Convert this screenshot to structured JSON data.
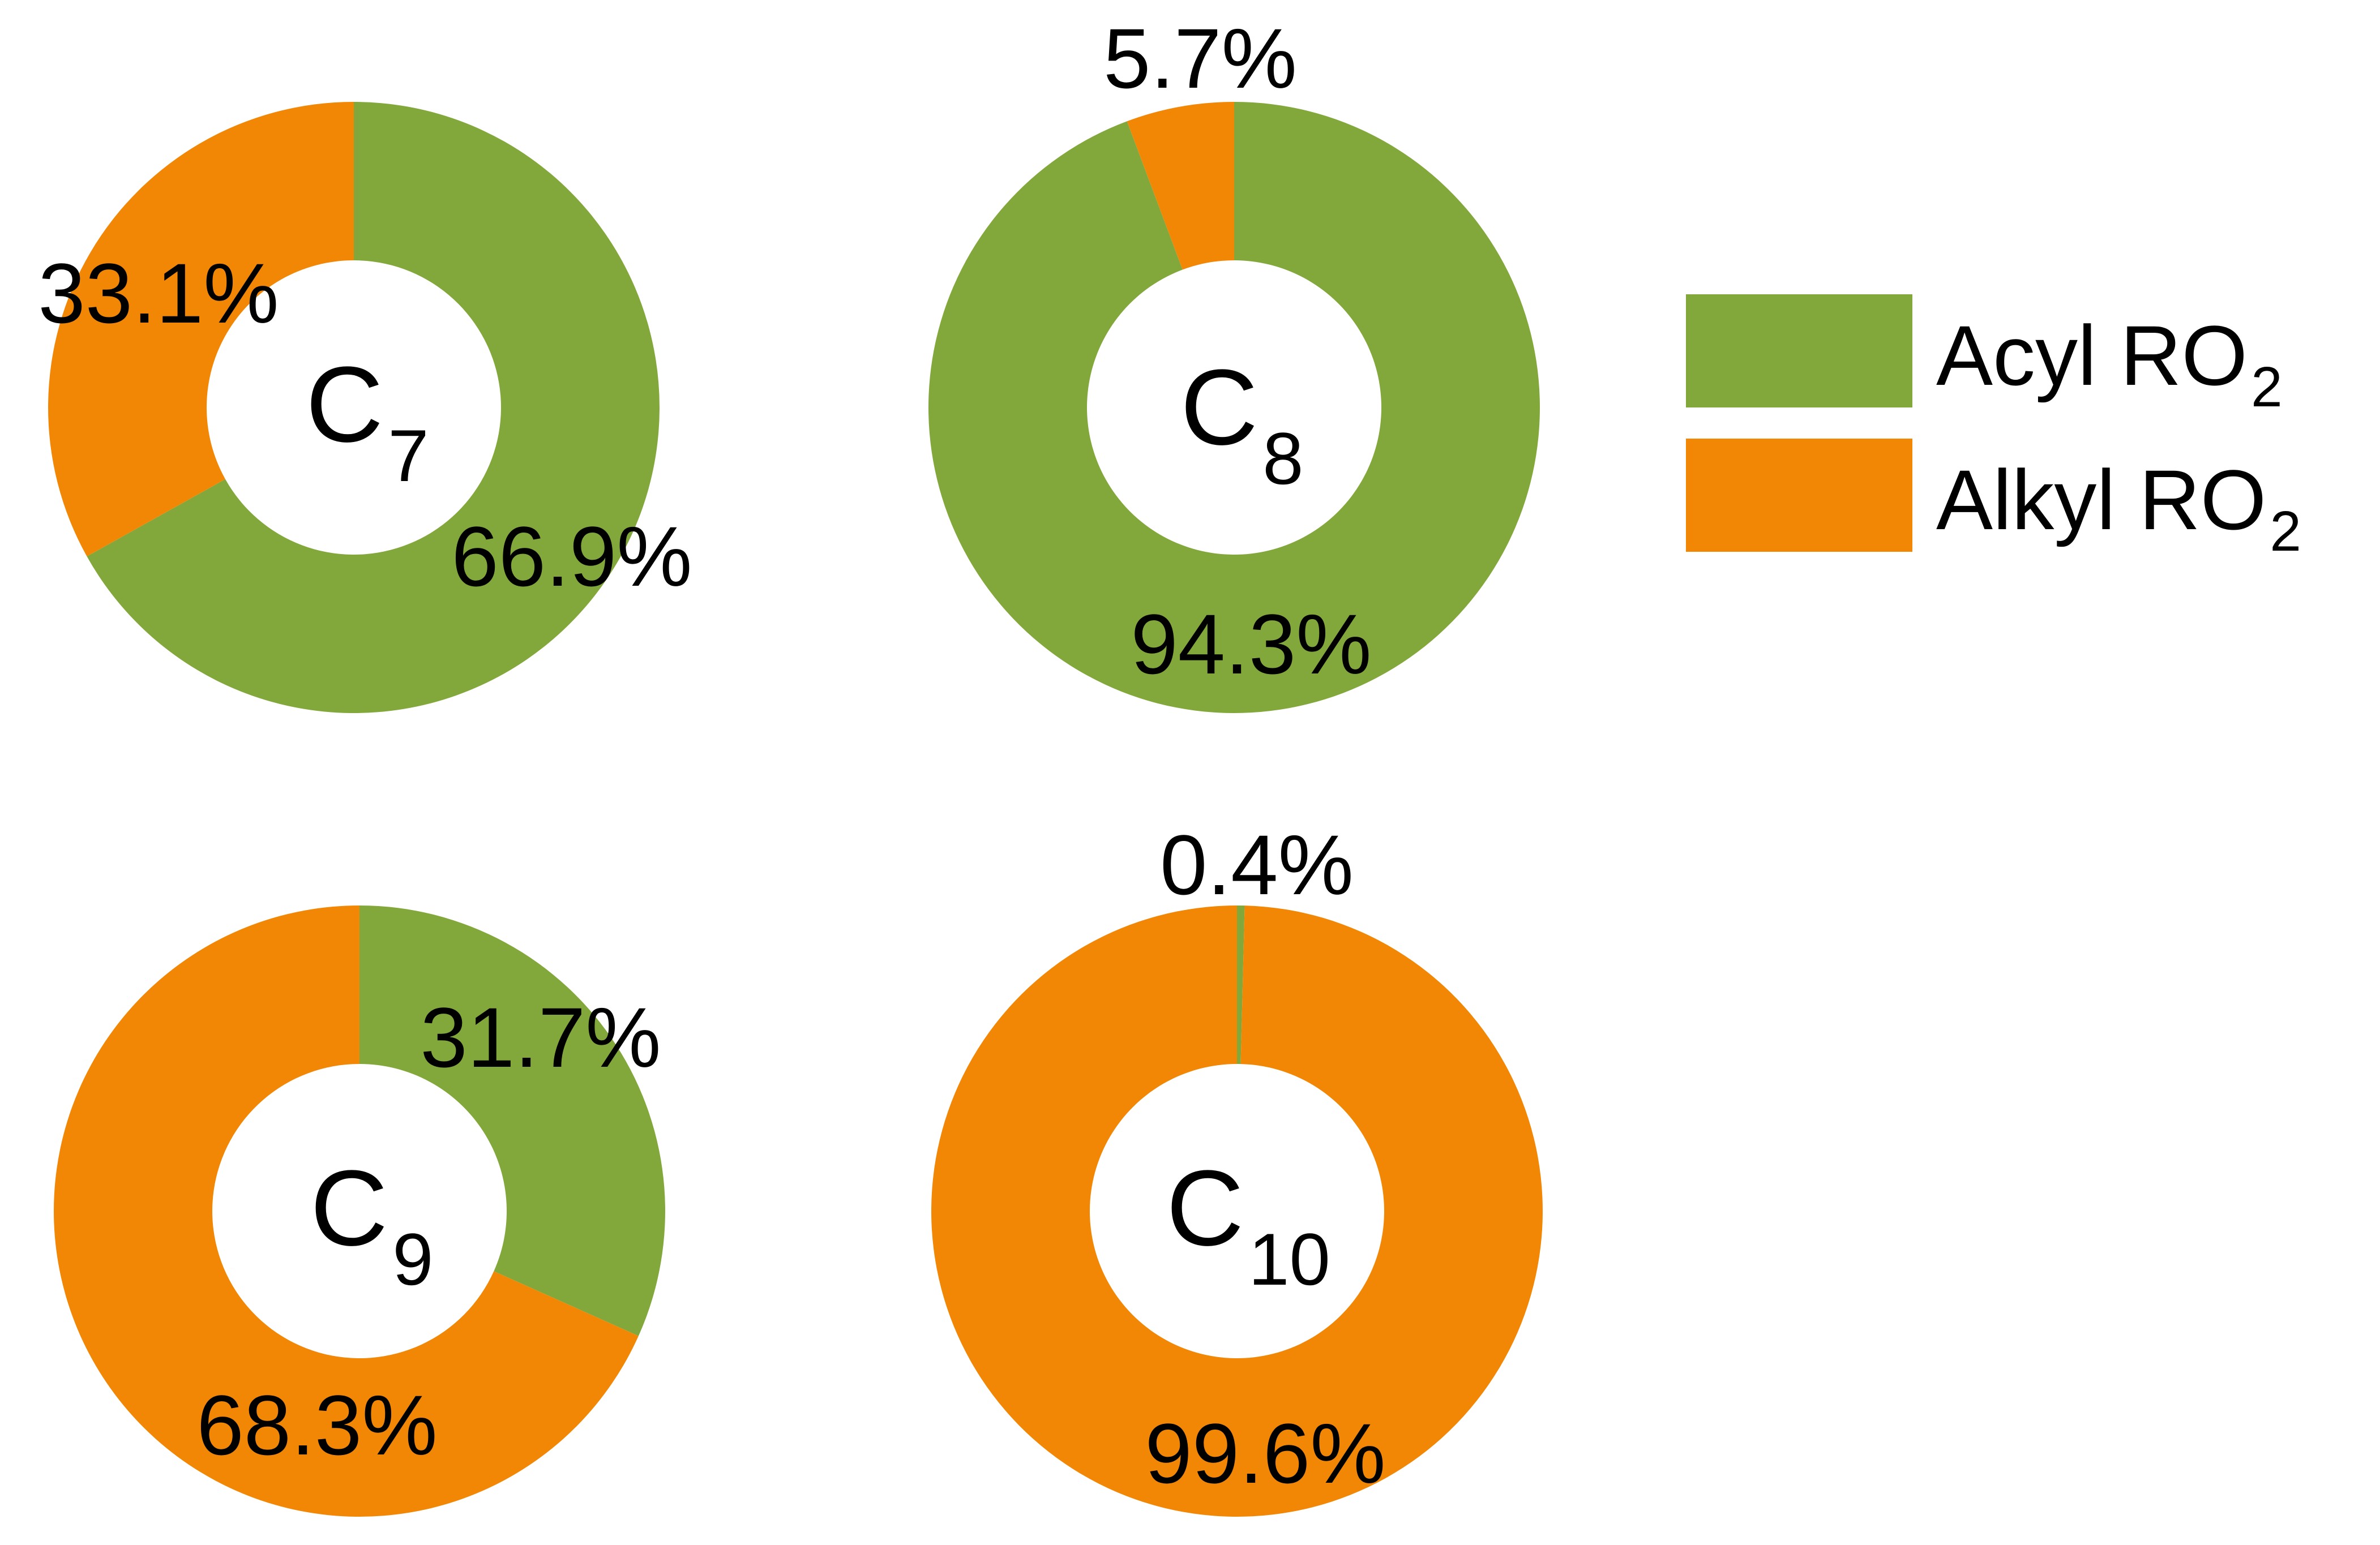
{
  "colors": {
    "acyl": "#82A83B",
    "alkyl": "#F28705",
    "text": "#000000"
  },
  "legend": {
    "acyl": {
      "label": "Acyl RO",
      "subscript": "2"
    },
    "alkyl": {
      "label": "Alkyl RO",
      "subscript": "2"
    }
  },
  "chart_data": [
    {
      "type": "pie",
      "center_label": {
        "main": "C",
        "subscript": "7"
      },
      "slices": [
        {
          "name": "Acyl RO2",
          "value": 66.9,
          "label": "66.9%"
        },
        {
          "name": "Alkyl RO2",
          "value": 33.1,
          "label": "33.1%"
        }
      ]
    },
    {
      "type": "pie",
      "center_label": {
        "main": "C",
        "subscript": "8"
      },
      "slices": [
        {
          "name": "Acyl RO2",
          "value": 94.3,
          "label": "94.3%"
        },
        {
          "name": "Alkyl RO2",
          "value": 5.7,
          "label": "5.7%"
        }
      ]
    },
    {
      "type": "pie",
      "center_label": {
        "main": "C",
        "subscript": "9"
      },
      "slices": [
        {
          "name": "Acyl RO2",
          "value": 31.7,
          "label": "31.7%"
        },
        {
          "name": "Alkyl RO2",
          "value": 68.3,
          "label": "68.3%"
        }
      ]
    },
    {
      "type": "pie",
      "center_label": {
        "main": "C",
        "subscript": "10"
      },
      "slices": [
        {
          "name": "Acyl RO2",
          "value": 0.4,
          "label": "0.4%"
        },
        {
          "name": "Alkyl RO2",
          "value": 99.6,
          "label": "99.6%"
        }
      ]
    }
  ]
}
